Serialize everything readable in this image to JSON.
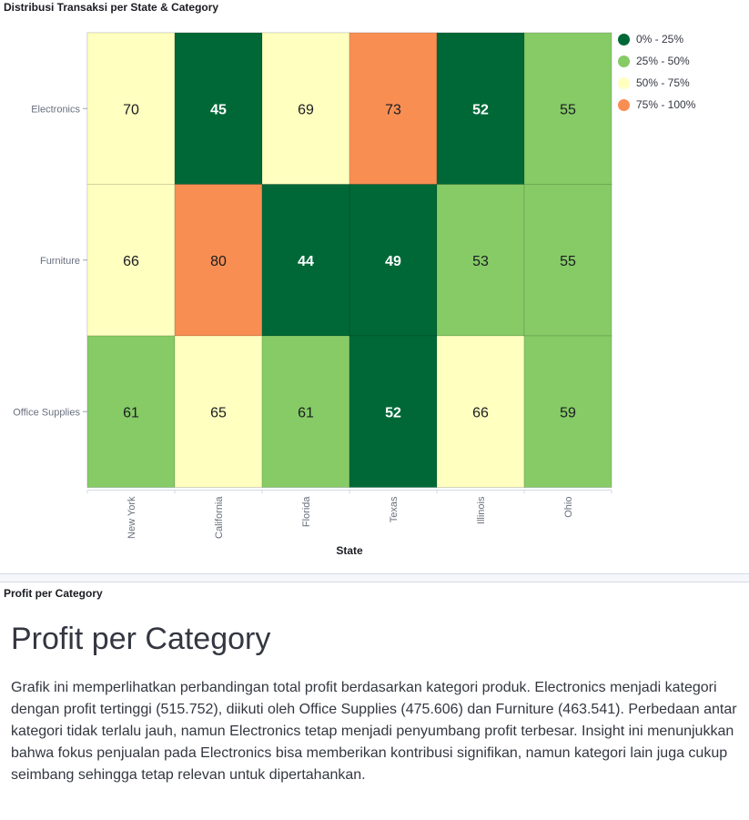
{
  "panels": {
    "heatmap_title": "Distribusi Transaksi per State & Category",
    "markdown_title": "Profit per Category"
  },
  "markdown": {
    "heading": "Profit per Category",
    "body": "Grafik ini memperlihatkan perbandingan total profit berdasarkan kategori produk. Electronics menjadi kategori dengan profit tertinggi (515.752), diikuti oleh Office Supplies (475.606) dan Furniture (463.541). Perbedaan antar kategori tidak terlalu jauh, namun Electronics tetap menjadi penyumbang profit terbesar. Insight ini menunjukkan bahwa fokus penjualan pada Electronics bisa memberikan kontribusi signifikan, namun kategori lain juga cukup seimbang sehingga tetap relevan untuk dipertahankan."
  },
  "chart_data": {
    "type": "heatmap",
    "title": "Distribusi Transaksi per State & Category",
    "xlabel": "State",
    "ylabel": "",
    "x": [
      "New York",
      "California",
      "Florida",
      "Texas",
      "Illinois",
      "Ohio"
    ],
    "y": [
      "Electronics",
      "Furniture",
      "Office Supplies"
    ],
    "values": [
      [
        70,
        45,
        69,
        73,
        52,
        55
      ],
      [
        66,
        80,
        44,
        49,
        53,
        55
      ],
      [
        61,
        65,
        61,
        52,
        66,
        59
      ]
    ],
    "legend": {
      "position": "right",
      "bins": [
        {
          "label": "0% - 25%",
          "color": "#006837"
        },
        {
          "label": "25% - 50%",
          "color": "#86cb66"
        },
        {
          "label": "50% - 75%",
          "color": "#ffffbf"
        },
        {
          "label": "75% - 100%",
          "color": "#f98e52"
        }
      ]
    },
    "value_range": [
      44,
      80
    ],
    "cell_bins": [
      [
        2,
        0,
        2,
        3,
        0,
        1
      ],
      [
        2,
        3,
        0,
        0,
        1,
        1
      ],
      [
        1,
        2,
        1,
        0,
        2,
        1
      ]
    ]
  }
}
